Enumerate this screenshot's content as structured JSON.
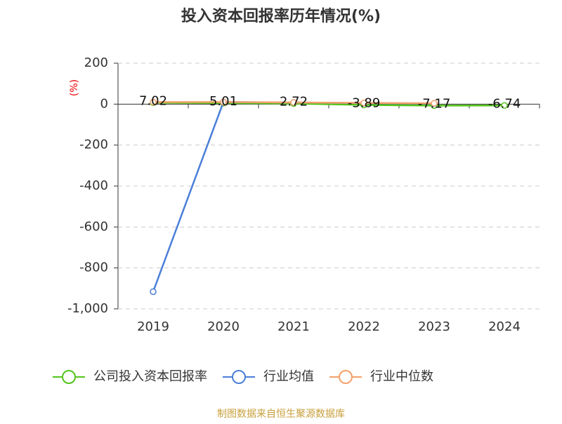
{
  "chart_data": {
    "type": "line",
    "title": "投入资本回报率历年情况(%)",
    "y_label": "(%)",
    "source": "制图数据来自恒生聚源数据库",
    "categories": [
      "2019",
      "2020",
      "2021",
      "2022",
      "2023",
      "2024"
    ],
    "series": [
      {
        "name": "公司投入资本回报率",
        "color": "#52c41a",
        "values": [
          7.02,
          5.01,
          2.72,
          -3.89,
          -7.17,
          -6.74
        ],
        "show_labels": true
      },
      {
        "name": "行业均值",
        "color": "#4a7fd8",
        "values": [
          -916,
          10,
          8,
          5,
          3,
          null
        ],
        "show_labels": false
      },
      {
        "name": "行业中位数",
        "color": "#f5a06a",
        "values": [
          10,
          10,
          8,
          6,
          4,
          null
        ],
        "show_labels": false
      }
    ],
    "ylim": [
      -1000,
      200
    ],
    "yticks": [
      {
        "value": -1000,
        "label": "-1,000"
      },
      -800,
      -600,
      -400,
      -200,
      0,
      200
    ],
    "grid": true
  }
}
